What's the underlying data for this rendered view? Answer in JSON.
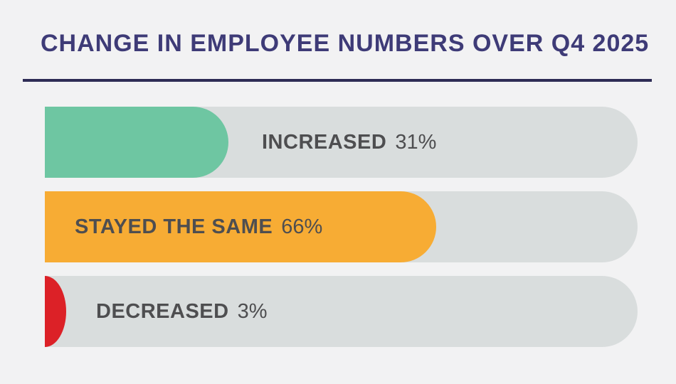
{
  "title": "CHANGE IN EMPLOYEE NUMBERS OVER Q4 2025",
  "colors": {
    "background": "#F2F2F3",
    "title_text": "#3E3B77",
    "divider": "#2E2C55",
    "track": "#D9DDDD",
    "label_text": "#4E4E50",
    "increased": "#6EC6A2",
    "stayed_same": "#F7AC34",
    "decreased": "#DC2127"
  },
  "chart_data": {
    "type": "bar",
    "orientation": "horizontal",
    "title": "CHANGE IN EMPLOYEE NUMBERS OVER Q4 2025",
    "xlabel": "",
    "ylabel": "",
    "xlim": [
      0,
      100
    ],
    "unit": "%",
    "grid": false,
    "legend": false,
    "categories": [
      "INCREASED",
      "STAYED THE SAME",
      "DECREASED"
    ],
    "values": [
      31,
      66,
      3
    ],
    "bars": [
      {
        "label": "INCREASED",
        "value": 31,
        "value_label": "31%",
        "color": "#6EC6A2",
        "label_position": "on-track-after-fill"
      },
      {
        "label": "STAYED THE SAME",
        "value": 66,
        "value_label": "66%",
        "color": "#F7AC34",
        "label_position": "inside-fill"
      },
      {
        "label": "DECREASED",
        "value": 3,
        "value_label": "3%",
        "color": "#DC2127",
        "label_position": "on-track-after-fill"
      }
    ]
  }
}
